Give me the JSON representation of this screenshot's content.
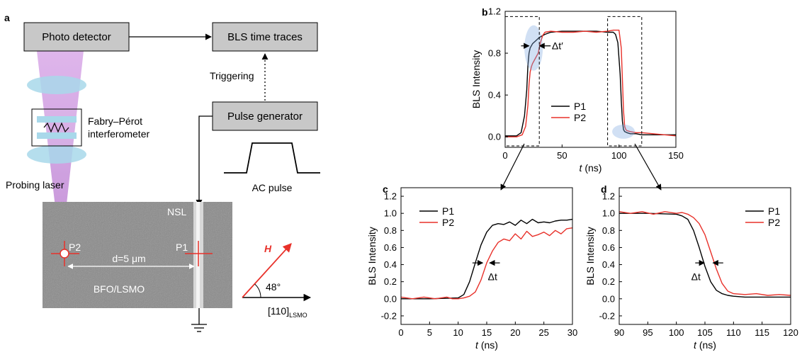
{
  "panel_a": {
    "letter": "a",
    "photo_detector": "Photo detector",
    "bls_time_traces": "BLS time traces",
    "triggering": "Triggering",
    "pulse_generator": "Pulse generator",
    "fabry_perot_line1": "Fabry–Pérot",
    "fabry_perot_line2": "interferometer",
    "probing_laser": "Probing laser",
    "ac_pulse": "AC pulse",
    "nsl": "NSL",
    "p1": "P1",
    "p2": "P2",
    "distance": "d=5 μm",
    "bfo_lsmo": "BFO/LSMO",
    "h_label": "H",
    "angle": "48°",
    "direction_main": "[110]",
    "direction_sub": "LSMO",
    "colors": {
      "box_fill": "#c8c8c8",
      "laser": "#c78fd9",
      "lens": "#a8d8ea",
      "red": "#e8312a",
      "sem": "#8a8a8a"
    }
  },
  "chart_data": [
    {
      "panel": "b",
      "type": "line",
      "xlabel": "t (ns)",
      "ylabel": "BLS Intensity",
      "xlim": [
        0,
        150
      ],
      "ylim": [
        -0.1,
        1.2
      ],
      "xticks": [
        0,
        50,
        100,
        150
      ],
      "yticks": [
        0.0,
        0.4,
        0.8,
        1.2
      ],
      "yticklabels": [
        "0.0",
        "0.4",
        "0.8",
        "1.2"
      ],
      "annotation": "Δt′",
      "legend_position": "center-right",
      "series": [
        {
          "name": "P1",
          "color": "#000000",
          "x": [
            0,
            10,
            14,
            17,
            19,
            20,
            21,
            22,
            23,
            24,
            25,
            27,
            30,
            35,
            40,
            50,
            60,
            70,
            80,
            90,
            95,
            97,
            99,
            101,
            102,
            103,
            104,
            105,
            107,
            110,
            115,
            120,
            130,
            140,
            150
          ],
          "y": [
            0.01,
            0.01,
            0.04,
            0.2,
            0.45,
            0.68,
            0.8,
            0.85,
            0.87,
            0.89,
            0.9,
            0.92,
            0.95,
            0.98,
            1.0,
            1.01,
            1.01,
            1.01,
            1.01,
            1.0,
            1.0,
            0.98,
            0.9,
            0.6,
            0.35,
            0.15,
            0.07,
            0.05,
            0.04,
            0.03,
            0.03,
            0.02,
            0.02,
            0.02,
            0.02
          ]
        },
        {
          "name": "P2",
          "color": "#e8312a",
          "x": [
            0,
            10,
            15,
            18,
            20,
            21,
            22,
            23,
            24,
            25,
            27,
            29,
            31,
            33,
            35,
            40,
            50,
            60,
            70,
            80,
            90,
            95,
            98,
            100,
            102,
            103,
            104,
            105,
            106,
            107,
            110,
            115,
            120,
            130,
            140,
            150
          ],
          "y": [
            0.0,
            0.0,
            0.02,
            0.1,
            0.3,
            0.5,
            0.62,
            0.67,
            0.7,
            0.72,
            0.76,
            0.8,
            0.9,
            0.97,
            1.0,
            1.01,
            1.0,
            1.0,
            1.01,
            1.0,
            1.01,
            1.02,
            1.02,
            1.02,
            0.85,
            0.55,
            0.25,
            0.1,
            0.07,
            0.06,
            0.05,
            0.04,
            0.04,
            0.03,
            0.02,
            0.01
          ]
        }
      ]
    },
    {
      "panel": "c",
      "type": "line",
      "xlabel": "t (ns)",
      "ylabel": "BLS Intensity",
      "xlim": [
        0,
        30
      ],
      "ylim": [
        -0.3,
        1.3
      ],
      "xticks": [
        0,
        5,
        10,
        15,
        20,
        25,
        30
      ],
      "yticks": [
        -0.2,
        0.0,
        0.2,
        0.4,
        0.6,
        0.8,
        1.0,
        1.2
      ],
      "yticklabels": [
        "-0.2",
        "0.0",
        "0.2",
        "0.4",
        "0.6",
        "0.8",
        "1.0",
        "1.2"
      ],
      "annotation": "Δt",
      "legend_position": "top-left",
      "series": [
        {
          "name": "P1",
          "color": "#000000",
          "x": [
            0,
            5,
            10,
            11,
            12,
            13,
            14,
            15,
            16,
            17,
            18,
            19,
            20,
            21,
            22,
            23,
            24,
            25,
            26,
            27,
            28,
            29,
            30
          ],
          "y": [
            0.0,
            0.0,
            0.01,
            0.05,
            0.2,
            0.42,
            0.63,
            0.78,
            0.86,
            0.88,
            0.87,
            0.9,
            0.86,
            0.92,
            0.88,
            0.93,
            0.89,
            0.9,
            0.89,
            0.91,
            0.92,
            0.92,
            0.93
          ]
        },
        {
          "name": "P2",
          "color": "#e8312a",
          "x": [
            0,
            2,
            4,
            6,
            8,
            9,
            10,
            11,
            12,
            13,
            14,
            15,
            16,
            17,
            18,
            19,
            20,
            21,
            22,
            23,
            24,
            25,
            26,
            27,
            28,
            29,
            30
          ],
          "y": [
            0.02,
            0.0,
            0.02,
            0.0,
            0.02,
            0.0,
            0.0,
            0.01,
            0.03,
            0.08,
            0.22,
            0.42,
            0.56,
            0.66,
            0.7,
            0.68,
            0.76,
            0.7,
            0.79,
            0.73,
            0.75,
            0.78,
            0.74,
            0.8,
            0.76,
            0.82,
            0.83
          ]
        }
      ]
    },
    {
      "panel": "d",
      "type": "line",
      "xlabel": "t (ns)",
      "ylabel": "BLS Intensity",
      "xlim": [
        90,
        120
      ],
      "ylim": [
        -0.3,
        1.3
      ],
      "xticks": [
        90,
        95,
        100,
        105,
        110,
        115,
        120
      ],
      "yticks": [
        -0.2,
        0.0,
        0.2,
        0.4,
        0.6,
        0.8,
        1.0,
        1.2
      ],
      "yticklabels": [
        "-0.2",
        "0.0",
        "0.2",
        "0.4",
        "0.6",
        "0.8",
        "1.0",
        "1.2"
      ],
      "annotation": "Δt",
      "legend_position": "top-right",
      "series": [
        {
          "name": "P1",
          "color": "#000000",
          "x": [
            90,
            95,
            100,
            101,
            102,
            103,
            104,
            105,
            106,
            107,
            108,
            109,
            110,
            112,
            115,
            120
          ],
          "y": [
            1.0,
            1.0,
            0.99,
            0.97,
            0.93,
            0.8,
            0.6,
            0.38,
            0.2,
            0.1,
            0.06,
            0.04,
            0.03,
            0.02,
            0.02,
            0.02
          ]
        },
        {
          "name": "P2",
          "color": "#e8312a",
          "x": [
            90,
            92,
            94,
            96,
            98,
            100,
            101,
            102,
            103,
            104,
            105,
            106,
            107,
            108,
            109,
            110,
            112,
            114,
            116,
            118,
            120
          ],
          "y": [
            1.02,
            1.0,
            1.02,
            0.99,
            1.02,
            1.0,
            1.01,
            0.99,
            0.95,
            0.88,
            0.75,
            0.55,
            0.35,
            0.18,
            0.09,
            0.06,
            0.05,
            0.06,
            0.04,
            0.05,
            0.04
          ]
        }
      ]
    }
  ]
}
